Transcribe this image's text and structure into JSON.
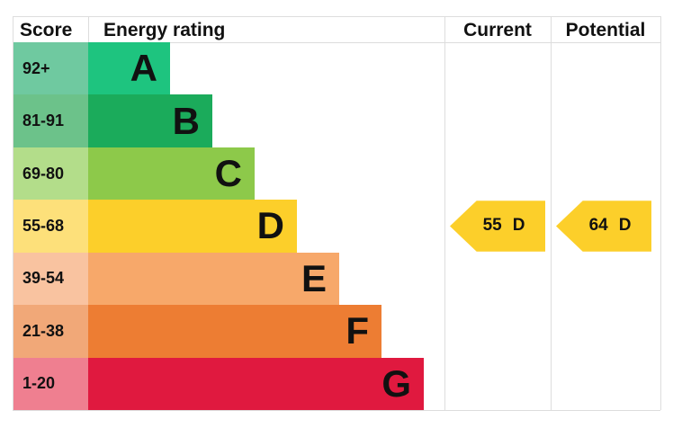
{
  "header": {
    "score": "Score",
    "rating": "Energy rating",
    "current": "Current",
    "potential": "Potential"
  },
  "bands": [
    {
      "score": "92+",
      "letter": "A",
      "score_color": "#6fc9a0",
      "bar_color": "#1ec47f"
    },
    {
      "score": "81-91",
      "letter": "B",
      "score_color": "#6cc28a",
      "bar_color": "#1bab5b"
    },
    {
      "score": "69-80",
      "letter": "C",
      "score_color": "#b3dd8a",
      "bar_color": "#8dc94a"
    },
    {
      "score": "55-68",
      "letter": "D",
      "score_color": "#fde07a",
      "bar_color": "#fccf2a"
    },
    {
      "score": "39-54",
      "letter": "E",
      "score_color": "#f9c3a0",
      "bar_color": "#f7a86a"
    },
    {
      "score": "21-38",
      "letter": "F",
      "score_color": "#f1a878",
      "bar_color": "#ed7d33"
    },
    {
      "score": "1-20",
      "letter": "G",
      "score_color": "#ef7f90",
      "bar_color": "#e0193f"
    }
  ],
  "current": {
    "value": 55,
    "band": "D",
    "color": "#fccf2a"
  },
  "potential": {
    "value": 64,
    "band": "D",
    "color": "#fccf2a"
  }
}
